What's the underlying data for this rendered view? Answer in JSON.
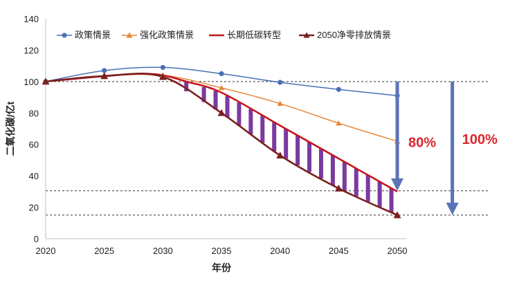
{
  "chart_data": {
    "type": "line",
    "title": "",
    "xlabel": "年份",
    "ylabel": "二氧化碳/亿t",
    "xlim": [
      2020,
      2050
    ],
    "ylim": [
      0,
      140
    ],
    "x_ticks": [
      2020,
      2025,
      2030,
      2035,
      2040,
      2045,
      2050
    ],
    "y_ticks": [
      0,
      20,
      40,
      60,
      80,
      100,
      120,
      140
    ],
    "series": [
      {
        "name": "政策情景",
        "color": "#4a6fb5",
        "marker": "circle",
        "x": [
          2020,
          2025,
          2030,
          2035,
          2040,
          2045,
          2050
        ],
        "values": [
          100,
          107,
          109,
          105,
          99.5,
          95,
          91
        ]
      },
      {
        "name": "强化政策情景",
        "color": "#e6883a",
        "marker": "triangle",
        "x": [
          2020,
          2025,
          2030,
          2035,
          2040,
          2045,
          2050
        ],
        "values": [
          100,
          103.5,
          104,
          96,
          86,
          73.5,
          62
        ]
      },
      {
        "name": "长期低碳转型",
        "color": "#c4161c",
        "marker": "none",
        "x": [
          2020,
          2025,
          2028,
          2030,
          2032,
          2035,
          2040,
          2045,
          2050
        ],
        "values": [
          100,
          103.5,
          105,
          104,
          100,
          93,
          72,
          51,
          30
        ]
      },
      {
        "name": "2050净零排放情景",
        "color": "#7a1f1f",
        "marker": "triangle",
        "x": [
          2020,
          2025,
          2030,
          2035,
          2040,
          2045,
          2050
        ],
        "values": [
          100,
          103.5,
          103,
          80,
          53,
          32,
          15
        ]
      }
    ],
    "reference_lines": [
      100,
      30.5,
      15
    ],
    "hatch_bars_x": [
      2032,
      2033.5,
      2034.5,
      2035.5,
      2036.5,
      2037.5,
      2038.5,
      2039.5,
      2040.5,
      2041.5,
      2042.5,
      2043.5,
      2044.5,
      2045.5,
      2046.5,
      2047.5,
      2048.5,
      2049.5
    ],
    "annotations": [
      {
        "text": "80%",
        "arrow_x": 2050,
        "from": 100,
        "to": 30.5
      },
      {
        "text": "100%",
        "arrow_x": 2054.7,
        "from": 100,
        "to": 15
      }
    ],
    "legend_position": "top"
  }
}
